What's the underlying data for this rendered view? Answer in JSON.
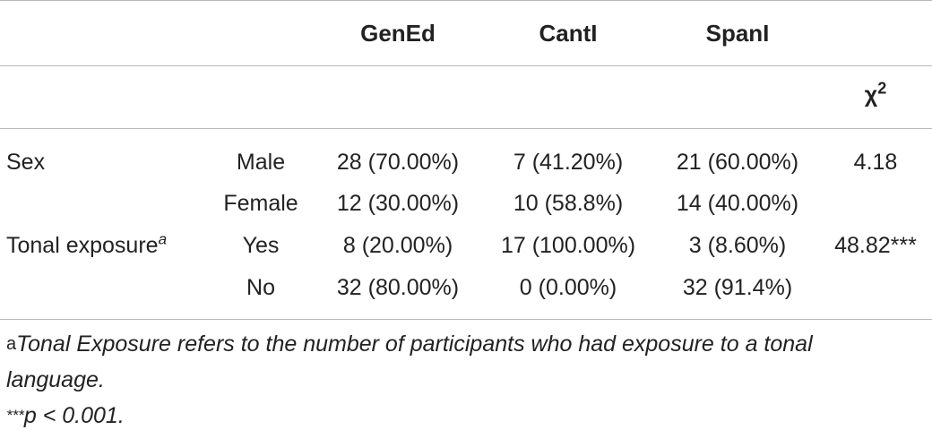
{
  "table": {
    "headers": {
      "geneds": "GenEd",
      "cantl": "CantI",
      "spanl": "SpanI"
    },
    "chi_header": {
      "symbol": "χ",
      "power": "2"
    },
    "rows": [
      {
        "group": "Sex",
        "group_sup": "",
        "level": "Male",
        "gened": "28 (70.00%)",
        "cantl": "7 (41.20%)",
        "spanl": "21 (60.00%)",
        "chi": "4.18"
      },
      {
        "group": "",
        "group_sup": "",
        "level": "Female",
        "gened": "12 (30.00%)",
        "cantl": "10 (58.8%)",
        "spanl": "14 (40.00%)",
        "chi": ""
      },
      {
        "group": "Tonal exposure",
        "group_sup": "a",
        "level": "Yes",
        "gened": "8 (20.00%)",
        "cantl": "17 (100.00%)",
        "spanl": "3 (8.60%)",
        "chi": "48.82***"
      },
      {
        "group": "",
        "group_sup": "",
        "level": "No",
        "gened": "32 (80.00%)",
        "cantl": "0 (0.00%)",
        "spanl": "32 (91.4%)",
        "chi": ""
      }
    ]
  },
  "footnotes": {
    "a_marker": "a",
    "a_text_line1": "Tonal Exposure refers to the number of participants who had exposure to a tonal",
    "a_text_line2": "language.",
    "p_marker": "***",
    "p_text": "p < 0.001."
  }
}
